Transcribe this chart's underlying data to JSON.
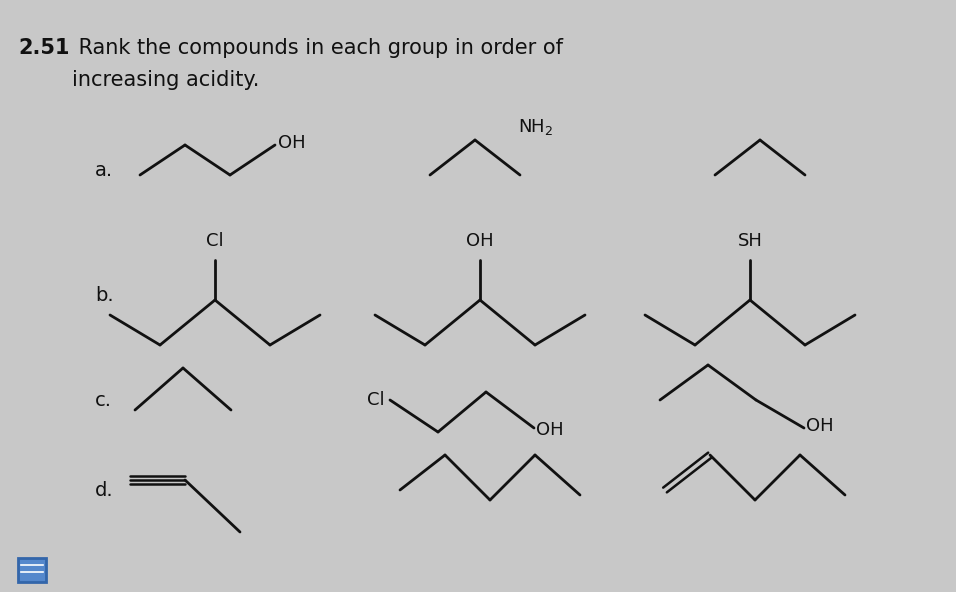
{
  "title_bold": "2.51",
  "title_text": " Rank the compounds in each group in order of",
  "subtitle_text": "increasing acidity.",
  "background_color": "#c8c8c8",
  "text_color": "#111111",
  "line_color": "#111111",
  "line_width": 2.0,
  "font_size_labels": 14,
  "font_size_title": 15,
  "font_size_chem": 13
}
